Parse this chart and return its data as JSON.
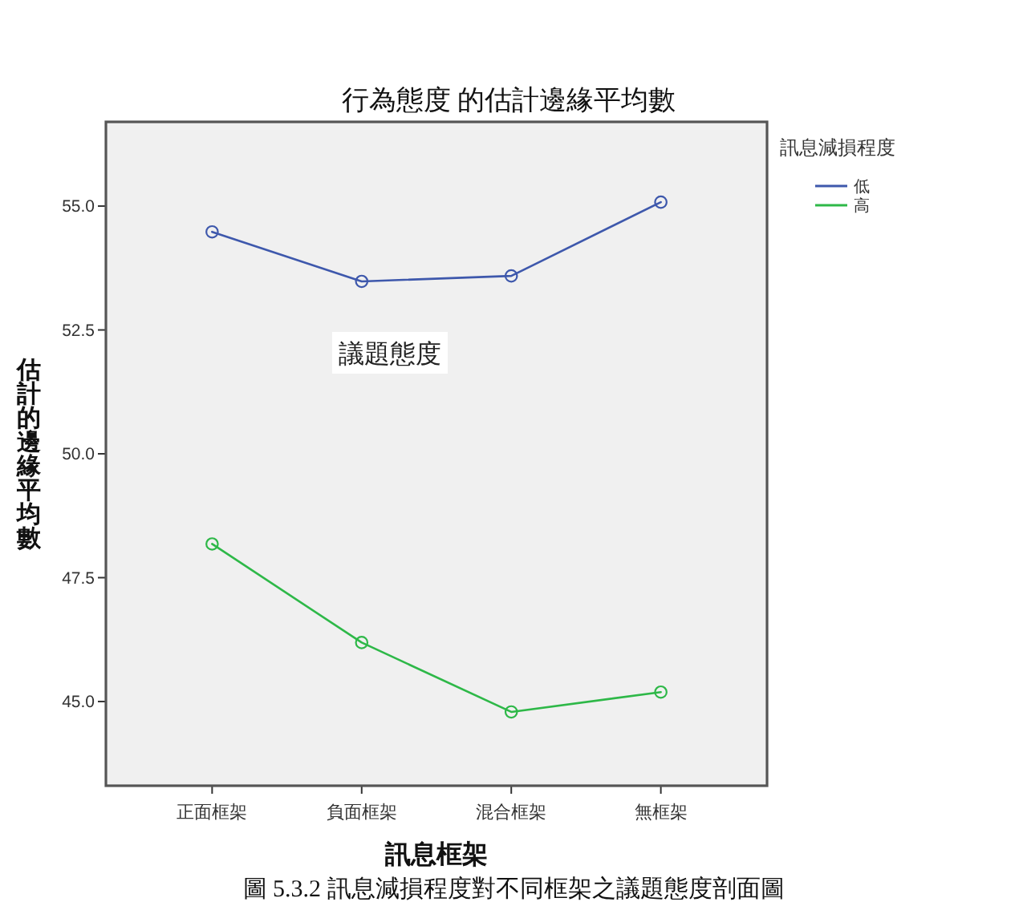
{
  "chart_data": {
    "type": "line",
    "title": "行為態度 的估計邊緣平均數",
    "xlabel": "訊息框架",
    "ylabel": "估計的邊緣平均數",
    "legend_title": "訊息減損程度",
    "categories": [
      "正面框架",
      "負面框架",
      "混合框架",
      "無框架"
    ],
    "series": [
      {
        "name": "低",
        "color": "#3e58ac",
        "values": [
          54.48,
          53.48,
          53.59,
          55.08
        ]
      },
      {
        "name": "高",
        "color": "#2eb848",
        "values": [
          48.18,
          46.19,
          44.79,
          45.19
        ]
      }
    ],
    "ylim": [
      43.3,
      56.7
    ],
    "yticks": [
      {
        "value": 45,
        "label": "45.0"
      },
      47.5,
      {
        "value": 50,
        "label": "50.0"
      },
      52.5,
      {
        "value": 55,
        "label": "55.0"
      }
    ],
    "legend": "top right",
    "marker": "circle",
    "line_style": "solid",
    "annotations": [
      "議題態度",
      "圖 5.3.2 訊息減損程度對不同框架之議題態度剖面圖"
    ]
  }
}
